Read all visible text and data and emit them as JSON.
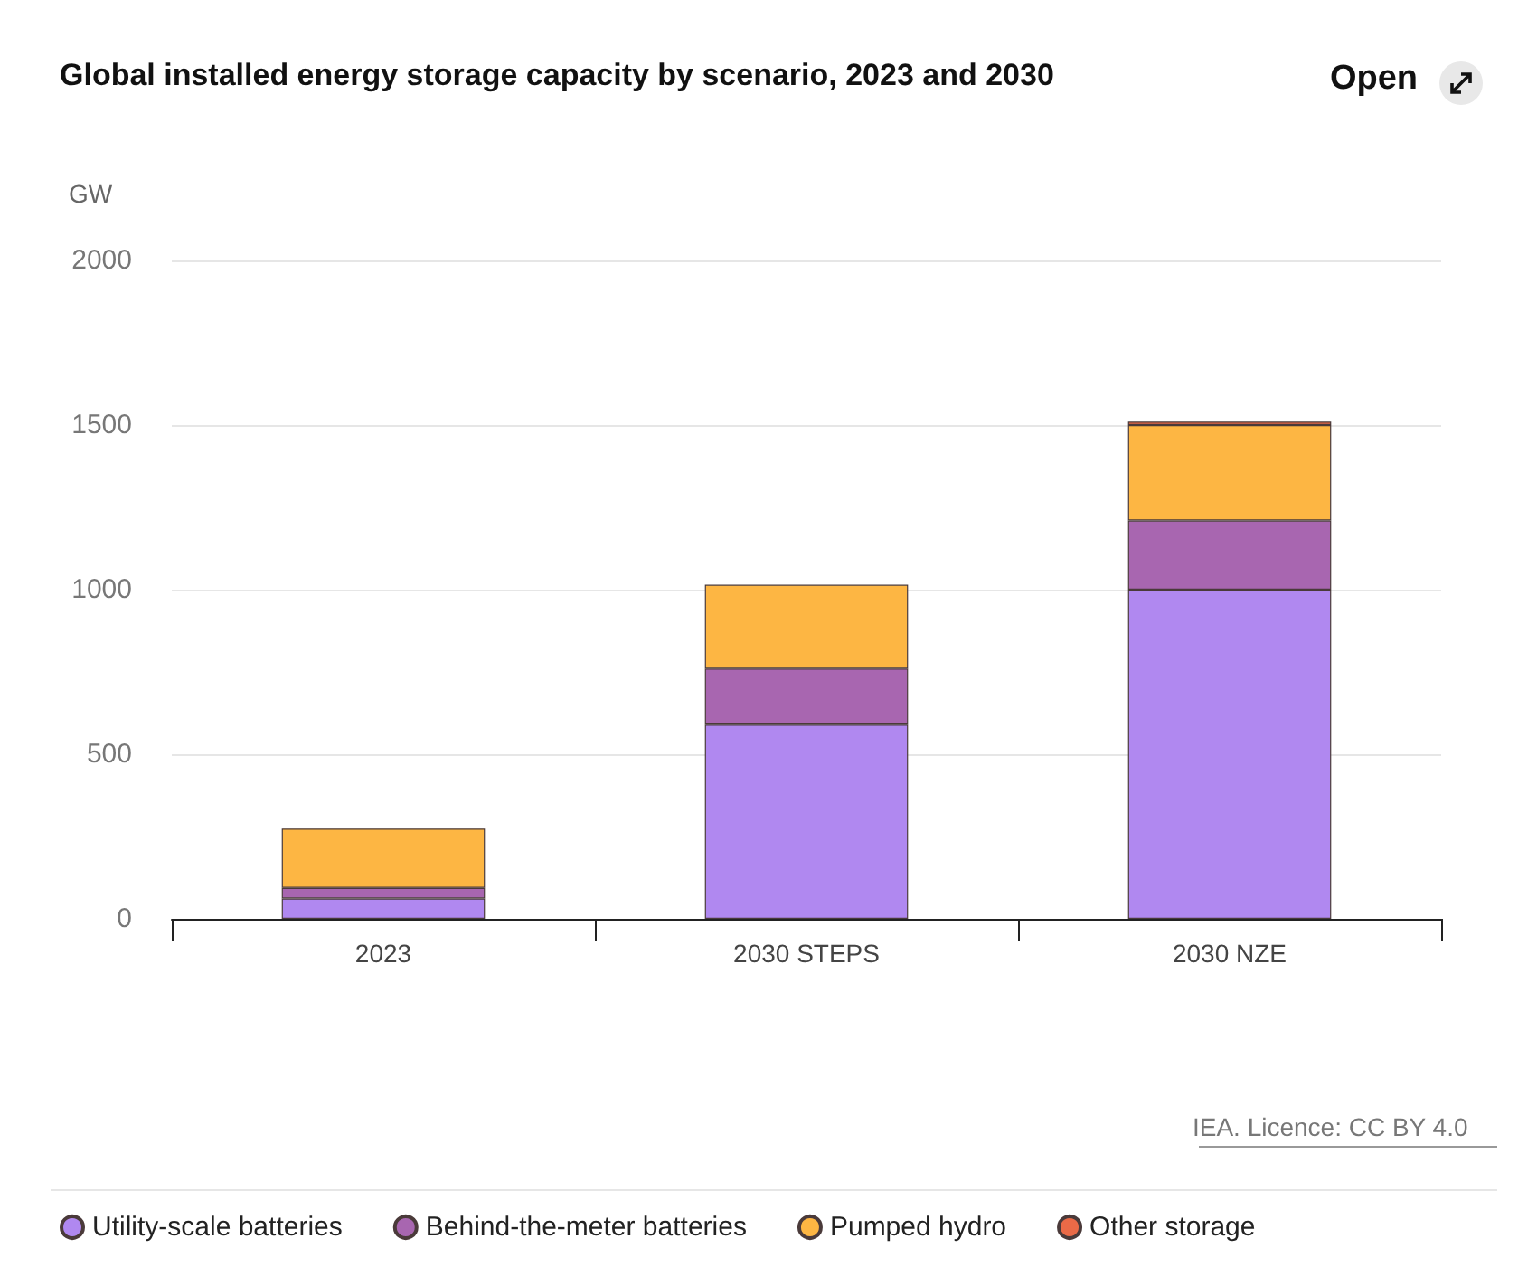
{
  "chart_data": {
    "type": "bar",
    "title": "Global installed energy storage capacity by scenario, 2023 and 2030",
    "ylabel": "GW",
    "categories": [
      "2023",
      "2030 STEPS",
      "2030 NZE"
    ],
    "stacked": true,
    "series": [
      {
        "name": "Utility-scale batteries",
        "color": "#b088f0",
        "values": [
          62,
          590,
          1000
        ]
      },
      {
        "name": "Behind-the-meter batteries",
        "color": "#a866b0",
        "values": [
          32,
          170,
          210
        ]
      },
      {
        "name": "Pumped hydro",
        "color": "#fdb643",
        "values": [
          180,
          255,
          290
        ]
      },
      {
        "name": "Other storage",
        "color": "#ea6a47",
        "values": [
          null,
          null,
          10
        ]
      }
    ],
    "ylim": [
      0,
      2000
    ],
    "yticks": [
      0,
      500,
      1000,
      1500,
      2000
    ],
    "grid": "y",
    "legend": "bottom left",
    "annotations": [
      "IEA. Licence: CC BY 4.0",
      "Open"
    ]
  }
}
